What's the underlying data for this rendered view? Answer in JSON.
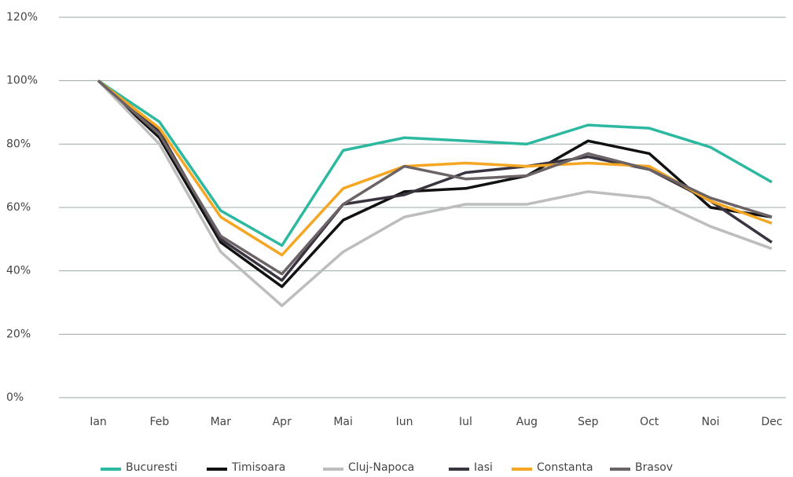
{
  "chart_data": {
    "type": "line",
    "categories": [
      "Ian",
      "Feb",
      "Mar",
      "Apr",
      "Mai",
      "Iun",
      "Iul",
      "Aug",
      "Sep",
      "Oct",
      "Noi",
      "Dec"
    ],
    "ylim": [
      0,
      120
    ],
    "yticks": [
      {
        "value": 0,
        "label": "0%"
      },
      {
        "value": 20,
        "label": "20%"
      },
      {
        "value": 40,
        "label": "40%"
      },
      {
        "value": 60,
        "label": "60%"
      },
      {
        "value": 80,
        "label": "80%"
      },
      {
        "value": 100,
        "label": "100%"
      },
      {
        "value": 120,
        "label": "120%"
      }
    ],
    "grid": true,
    "legend": "bottom",
    "series": [
      {
        "name": "Bucuresti",
        "color": "#2db8a0",
        "values": [
          100,
          87,
          59,
          48,
          78,
          82,
          81,
          80,
          86,
          85,
          79,
          68
        ]
      },
      {
        "name": "Timisoara",
        "color": "#111111",
        "values": [
          100,
          82,
          49,
          35,
          56,
          65,
          66,
          70,
          81,
          77,
          60,
          57
        ]
      },
      {
        "name": "Cluj-Napoca",
        "color": "#bdbdbd",
        "values": [
          100,
          80,
          46,
          29,
          46,
          57,
          61,
          61,
          65,
          63,
          54,
          47
        ]
      },
      {
        "name": "Iasi",
        "color": "#3a3340",
        "values": [
          100,
          84,
          50,
          37,
          61,
          64,
          71,
          73,
          76,
          72,
          62,
          49
        ]
      },
      {
        "name": "Constanta",
        "color": "#f5a623",
        "values": [
          100,
          85,
          57,
          45,
          66,
          73,
          74,
          73,
          74,
          73,
          62,
          55
        ]
      },
      {
        "name": "Brasov",
        "color": "#6b6365",
        "values": [
          100,
          83,
          51,
          39,
          61,
          73,
          69,
          70,
          77,
          72,
          63,
          57
        ]
      }
    ]
  }
}
